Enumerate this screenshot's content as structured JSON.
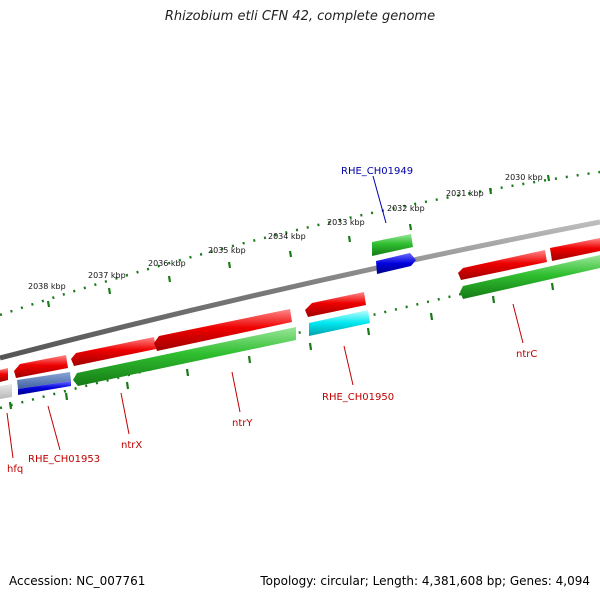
{
  "title": "Rhizobium etli CFN 42, complete genome",
  "footer": {
    "accession": "Accession: NC_007761",
    "summary": "Topology: circular; Length: 4,381,608 bp; Genes: 4,094"
  },
  "kbp_labels": [
    "2030 kbp",
    "2031 kbp",
    "2032 kbp",
    "2033 kbp",
    "2034 kbp",
    "2035 kbp",
    "2036 kbp",
    "2037 kbp",
    "2038 kbp"
  ],
  "gene_labels": {
    "rhe_ch01949": "RHE_CH01949",
    "rhe_ch01950": "RHE_CH01950",
    "rhe_ch01953": "RHE_CH01953",
    "ntrC": "ntrC",
    "ntrY": "ntrY",
    "ntrX": "ntrX",
    "hfq": "hfq"
  },
  "colors": {
    "cds_forward": "#e00000",
    "cds_reverse": "#22b022",
    "gene_blue": "#0000dd",
    "gene_cyan": "#00e0e8",
    "backbone": "#888888",
    "ticks": "#1a7a1a",
    "label_red": "#c00000",
    "label_blue": "#0000aa"
  }
}
